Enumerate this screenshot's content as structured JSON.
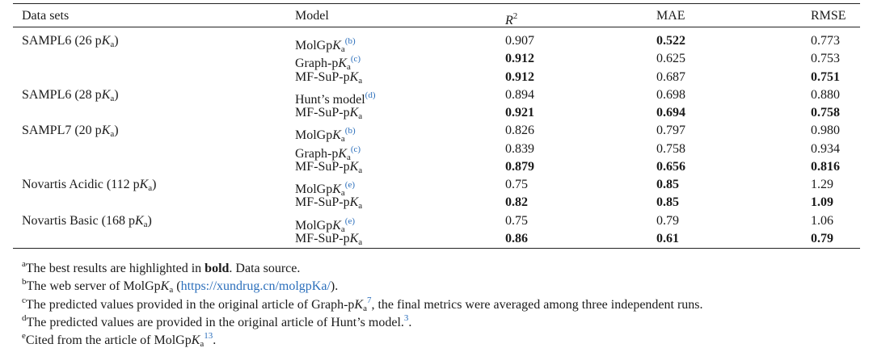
{
  "table": {
    "columns": [
      [
        {
          "text": "Data sets"
        }
      ],
      [
        {
          "text": "Model"
        }
      ],
      [
        {
          "text": "R",
          "style": "i"
        },
        {
          "text": "2",
          "style": "sup"
        }
      ],
      [
        {
          "text": "MAE"
        }
      ],
      [
        {
          "text": "RMSE"
        }
      ]
    ],
    "rows": [
      {
        "dataset": [
          {
            "text": "SAMPL6 (26 p"
          },
          {
            "text": "K",
            "style": "i"
          },
          {
            "text": "a",
            "style": "sub"
          },
          {
            "text": ")"
          }
        ],
        "model": [
          {
            "text": "MolGp"
          },
          {
            "text": "K",
            "style": "i"
          },
          {
            "text": "a",
            "style": "sub"
          },
          {
            "text": "(b)",
            "style": "sup-link"
          }
        ],
        "values": [
          "0.907",
          "0.522",
          "0.773"
        ],
        "bold": [
          false,
          true,
          false
        ]
      },
      {
        "dataset": null,
        "model": [
          {
            "text": "Graph-p"
          },
          {
            "text": "K",
            "style": "i"
          },
          {
            "text": "a",
            "style": "sub"
          },
          {
            "text": "(c)",
            "style": "sup-link"
          }
        ],
        "values": [
          "0.912",
          "0.625",
          "0.753"
        ],
        "bold": [
          true,
          false,
          false
        ]
      },
      {
        "dataset": null,
        "model": [
          {
            "text": "MF-SuP-p"
          },
          {
            "text": "K",
            "style": "i"
          },
          {
            "text": "a",
            "style": "sub"
          }
        ],
        "values": [
          "0.912",
          "0.687",
          "0.751"
        ],
        "bold": [
          true,
          false,
          true
        ]
      },
      {
        "dataset": [
          {
            "text": "SAMPL6 (28 p"
          },
          {
            "text": "K",
            "style": "i"
          },
          {
            "text": "a",
            "style": "sub"
          },
          {
            "text": ")"
          }
        ],
        "model": [
          {
            "text": "Hunt’s model"
          },
          {
            "text": "(d)",
            "style": "sup-link"
          }
        ],
        "values": [
          "0.894",
          "0.698",
          "0.880"
        ],
        "bold": [
          false,
          false,
          false
        ]
      },
      {
        "dataset": null,
        "model": [
          {
            "text": "MF-SuP-p"
          },
          {
            "text": "K",
            "style": "i"
          },
          {
            "text": "a",
            "style": "sub"
          }
        ],
        "values": [
          "0.921",
          "0.694",
          "0.758"
        ],
        "bold": [
          true,
          true,
          true
        ]
      },
      {
        "dataset": [
          {
            "text": "SAMPL7 (20 p"
          },
          {
            "text": "K",
            "style": "i"
          },
          {
            "text": "a",
            "style": "sub"
          },
          {
            "text": ")"
          }
        ],
        "model": [
          {
            "text": "MolGp"
          },
          {
            "text": "K",
            "style": "i"
          },
          {
            "text": "a",
            "style": "sub"
          },
          {
            "text": "(b)",
            "style": "sup-link"
          }
        ],
        "values": [
          "0.826",
          "0.797",
          "0.980"
        ],
        "bold": [
          false,
          false,
          false
        ]
      },
      {
        "dataset": null,
        "model": [
          {
            "text": "Graph-p"
          },
          {
            "text": "K",
            "style": "i"
          },
          {
            "text": "a",
            "style": "sub"
          },
          {
            "text": "(c)",
            "style": "sup-link"
          }
        ],
        "values": [
          "0.839",
          "0.758",
          "0.934"
        ],
        "bold": [
          false,
          false,
          false
        ]
      },
      {
        "dataset": null,
        "model": [
          {
            "text": "MF-SuP-p"
          },
          {
            "text": "K",
            "style": "i"
          },
          {
            "text": "a",
            "style": "sub"
          }
        ],
        "values": [
          "0.879",
          "0.656",
          "0.816"
        ],
        "bold": [
          true,
          true,
          true
        ]
      },
      {
        "dataset": [
          {
            "text": "Novartis Acidic (112 p"
          },
          {
            "text": "K",
            "style": "i"
          },
          {
            "text": "a",
            "style": "sub"
          },
          {
            "text": ")"
          }
        ],
        "model": [
          {
            "text": "MolGp"
          },
          {
            "text": "K",
            "style": "i"
          },
          {
            "text": "a",
            "style": "sub"
          },
          {
            "text": "(e)",
            "style": "sup-link"
          }
        ],
        "values": [
          "0.75",
          "0.85",
          "1.29"
        ],
        "bold": [
          false,
          true,
          false
        ]
      },
      {
        "dataset": null,
        "model": [
          {
            "text": "MF-SuP-p"
          },
          {
            "text": "K",
            "style": "i"
          },
          {
            "text": "a",
            "style": "sub"
          }
        ],
        "values": [
          "0.82",
          "0.85",
          "1.09"
        ],
        "bold": [
          true,
          true,
          true
        ]
      },
      {
        "dataset": [
          {
            "text": "Novartis Basic (168 p"
          },
          {
            "text": "K",
            "style": "i"
          },
          {
            "text": "a",
            "style": "sub"
          },
          {
            "text": ")"
          }
        ],
        "model": [
          {
            "text": "MolGp"
          },
          {
            "text": "K",
            "style": "i"
          },
          {
            "text": "a",
            "style": "sub"
          },
          {
            "text": "(e)",
            "style": "sup-link"
          }
        ],
        "values": [
          "0.75",
          "0.79",
          "1.06"
        ],
        "bold": [
          false,
          false,
          false
        ]
      },
      {
        "dataset": null,
        "model": [
          {
            "text": "MF-SuP-p"
          },
          {
            "text": "K",
            "style": "i"
          },
          {
            "text": "a",
            "style": "sub"
          }
        ],
        "values": [
          "0.86",
          "0.61",
          "0.79"
        ],
        "bold": [
          true,
          true,
          true
        ]
      }
    ],
    "footnotes": [
      [
        {
          "text": "a",
          "style": "sup"
        },
        {
          "text": "The best results are highlighted in "
        },
        {
          "text": "bold",
          "style": "b"
        },
        {
          "text": ". Data source."
        }
      ],
      [
        {
          "text": "b",
          "style": "sup"
        },
        {
          "text": "The web server of MolGp"
        },
        {
          "text": "K",
          "style": "i"
        },
        {
          "text": "a",
          "style": "sub"
        },
        {
          "text": " ("
        },
        {
          "text": "https://xundrug.cn/molgpKa/",
          "style": "link"
        },
        {
          "text": ")."
        }
      ],
      [
        {
          "text": "c",
          "style": "sup"
        },
        {
          "text": "The predicted values provided in the original article of Graph-p"
        },
        {
          "text": "K",
          "style": "i"
        },
        {
          "text": "a",
          "style": "sub"
        },
        {
          "text": "7",
          "style": "sup-link"
        },
        {
          "text": ", the final metrics were averaged among three independent runs."
        }
      ],
      [
        {
          "text": "d",
          "style": "sup"
        },
        {
          "text": "The predicted values are provided in the original article of Hunt’s model."
        },
        {
          "text": "3",
          "style": "sup-link"
        },
        {
          "text": "."
        }
      ],
      [
        {
          "text": "e",
          "style": "sup"
        },
        {
          "text": "Cited from the article of MolGp"
        },
        {
          "text": "K",
          "style": "i"
        },
        {
          "text": "a",
          "style": "sub"
        },
        {
          "text": "13",
          "style": "sup-link"
        },
        {
          "text": "."
        }
      ]
    ]
  }
}
